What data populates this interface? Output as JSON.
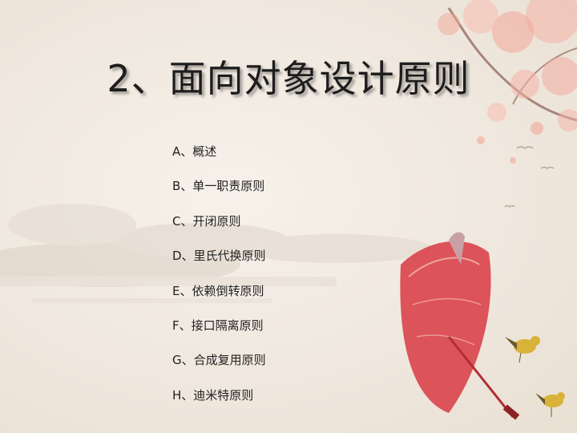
{
  "slide": {
    "title": "2、面向对象设计原则",
    "items": [
      "A、概述",
      "B、单一职责原则",
      "C、开闭原则",
      "D、里氏代换原则",
      "E、依赖倒转原则",
      "F、接口隔离原则",
      "G、合成复用原则",
      "H、迪米特原则"
    ]
  },
  "theme": {
    "background": "#f3ede5",
    "blossom": "#f2a79a",
    "umbrella": "#d9434a",
    "bird": "#d9b23a"
  }
}
